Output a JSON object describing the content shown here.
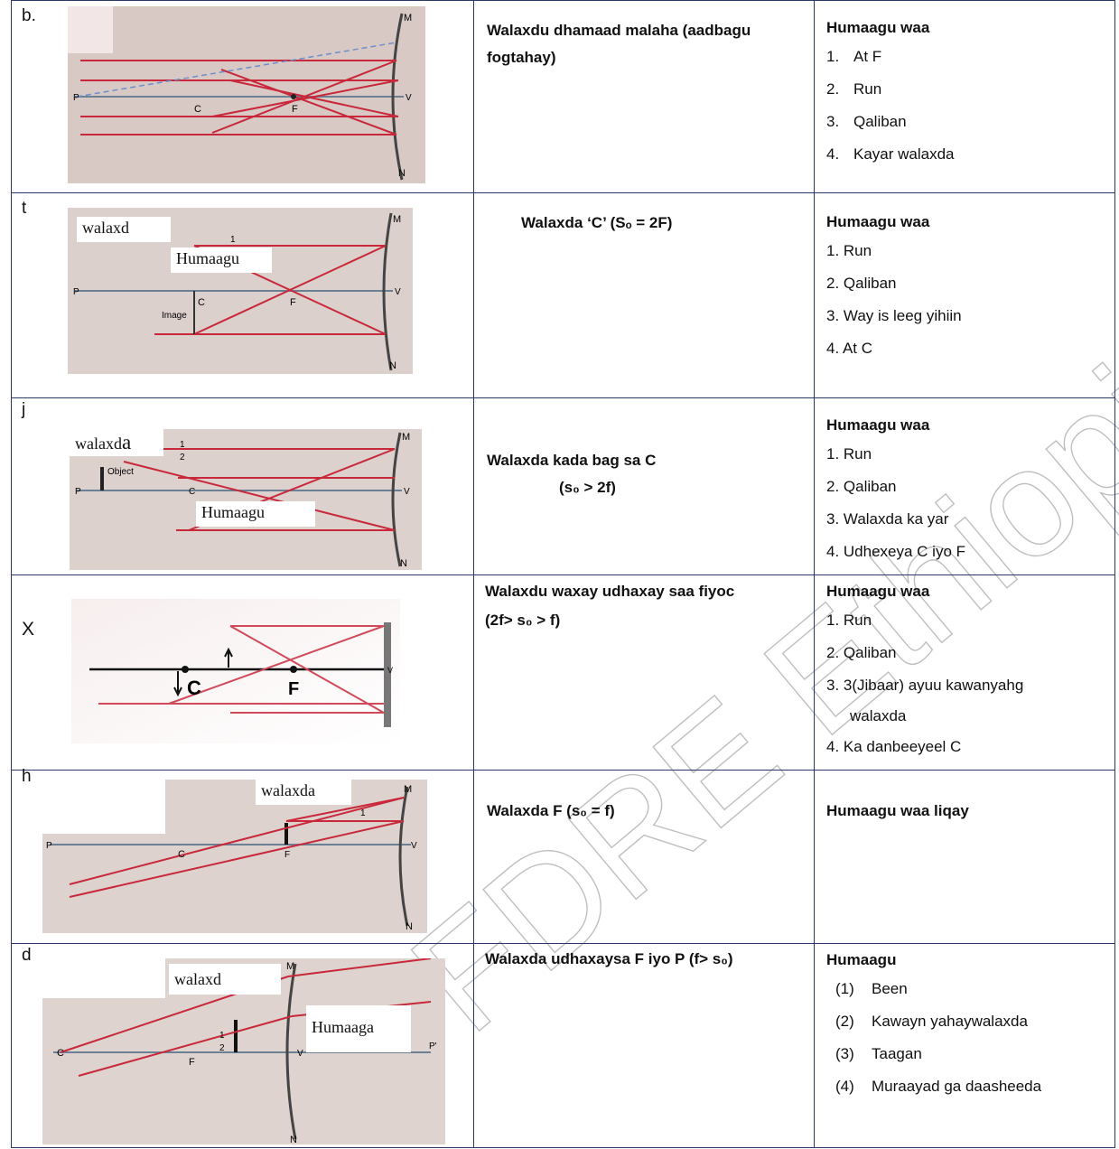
{
  "rows": [
    {
      "label": "b.",
      "condition_lines": [
        "Walaxdu dhamaad malaha (aadbagu",
        "fogtahay)"
      ],
      "result_head": "Humaagu waa",
      "result_items": [
        "At F",
        "Run",
        "Qaliban",
        "Kayar walaxda"
      ],
      "diagram_labels": {
        "m": "M",
        "v": "V",
        "n": "N",
        "p": "P",
        "c": "C",
        "f": "F"
      }
    },
    {
      "label": "t",
      "condition_lines": [
        "Walaxda ‘C’ (Sₒ = 2F)"
      ],
      "result_head": "Humaagu waa",
      "result_items": [
        "1. Run",
        "2. Qaliban",
        "3. Way is leeg yihiin",
        "4. At C"
      ],
      "overlay_1": "walaxd",
      "overlay_2": "Humaagu",
      "diagram_labels": {
        "m": "M",
        "v": "V",
        "n": "N",
        "p": "P",
        "c": "C",
        "f": "F",
        "image": "Image",
        "ray1": "1"
      }
    },
    {
      "label": "j",
      "condition_lines": [
        "Walaxda kada bag sa C",
        "(s₀ > 2f)"
      ],
      "result_head": "Humaagu waa",
      "result_items": [
        "1. Run",
        "2. Qaliban",
        "3. Walaxda ka yar",
        "4. Udhexeya C iyo F"
      ],
      "overlay_1_prefix": "walaxd",
      "overlay_1_suffix": "a",
      "overlay_2": "Humaagu",
      "diagram_labels": {
        "m": "M",
        "v": "V",
        "n": "N",
        "p": "P",
        "c": "C",
        "object": "Object",
        "ray1": "1",
        "ray2": "2"
      }
    },
    {
      "label": "X",
      "condition_lines": [
        "Walaxdu waxay udhaxay saa fiyoc",
        "(2f>  s₀ > f)"
      ],
      "result_head": "Humaagu waa",
      "result_items": [
        "1.  Run",
        "2.  Qaliban",
        "3.  3(Jibaar) ayuu kawanyahg",
        "walaxda",
        "4.  Ka danbeeyeel C"
      ],
      "diagram_labels": {
        "c": "C",
        "f": "F",
        "v": "V"
      }
    },
    {
      "label": "h",
      "condition_lines": [
        "Walaxda  F (s₀ = f)"
      ],
      "result_head": "Humaagu waa liqay",
      "overlay_1": "walaxda",
      "diagram_labels": {
        "m": "M",
        "v": "V",
        "n": "N",
        "p": "P",
        "c": "C",
        "f": "F",
        "ray1": "1"
      }
    },
    {
      "label": "d",
      "condition_lines": [
        "Walaxda udhaxaysa F iyo P (f> s₀)"
      ],
      "result_head": "Humaagu",
      "result_items": [
        {
          "num": "(1)",
          "text": "Been"
        },
        {
          "num": "(2)",
          "text": "Kawayn yahaywalaxda"
        },
        {
          "num": "(3)",
          "text": "Taagan"
        },
        {
          "num": "(4)",
          "text": "Muraayad ga daasheeda"
        }
      ],
      "overlay_1": "walaxd",
      "overlay_2": "Humaaga",
      "diagram_labels": {
        "m": "M",
        "v": "V",
        "n": "N",
        "p": "P'",
        "c": "C",
        "f": "F",
        "ray1": "1",
        "ray2": "2"
      }
    }
  ],
  "watermark": "FDRE Ethiopia  to be republished",
  "colors": {
    "border": "#2a3a66",
    "ray": "#c8283a",
    "axis": "#6b7f95",
    "photo_bg": "#d9c8c4"
  }
}
